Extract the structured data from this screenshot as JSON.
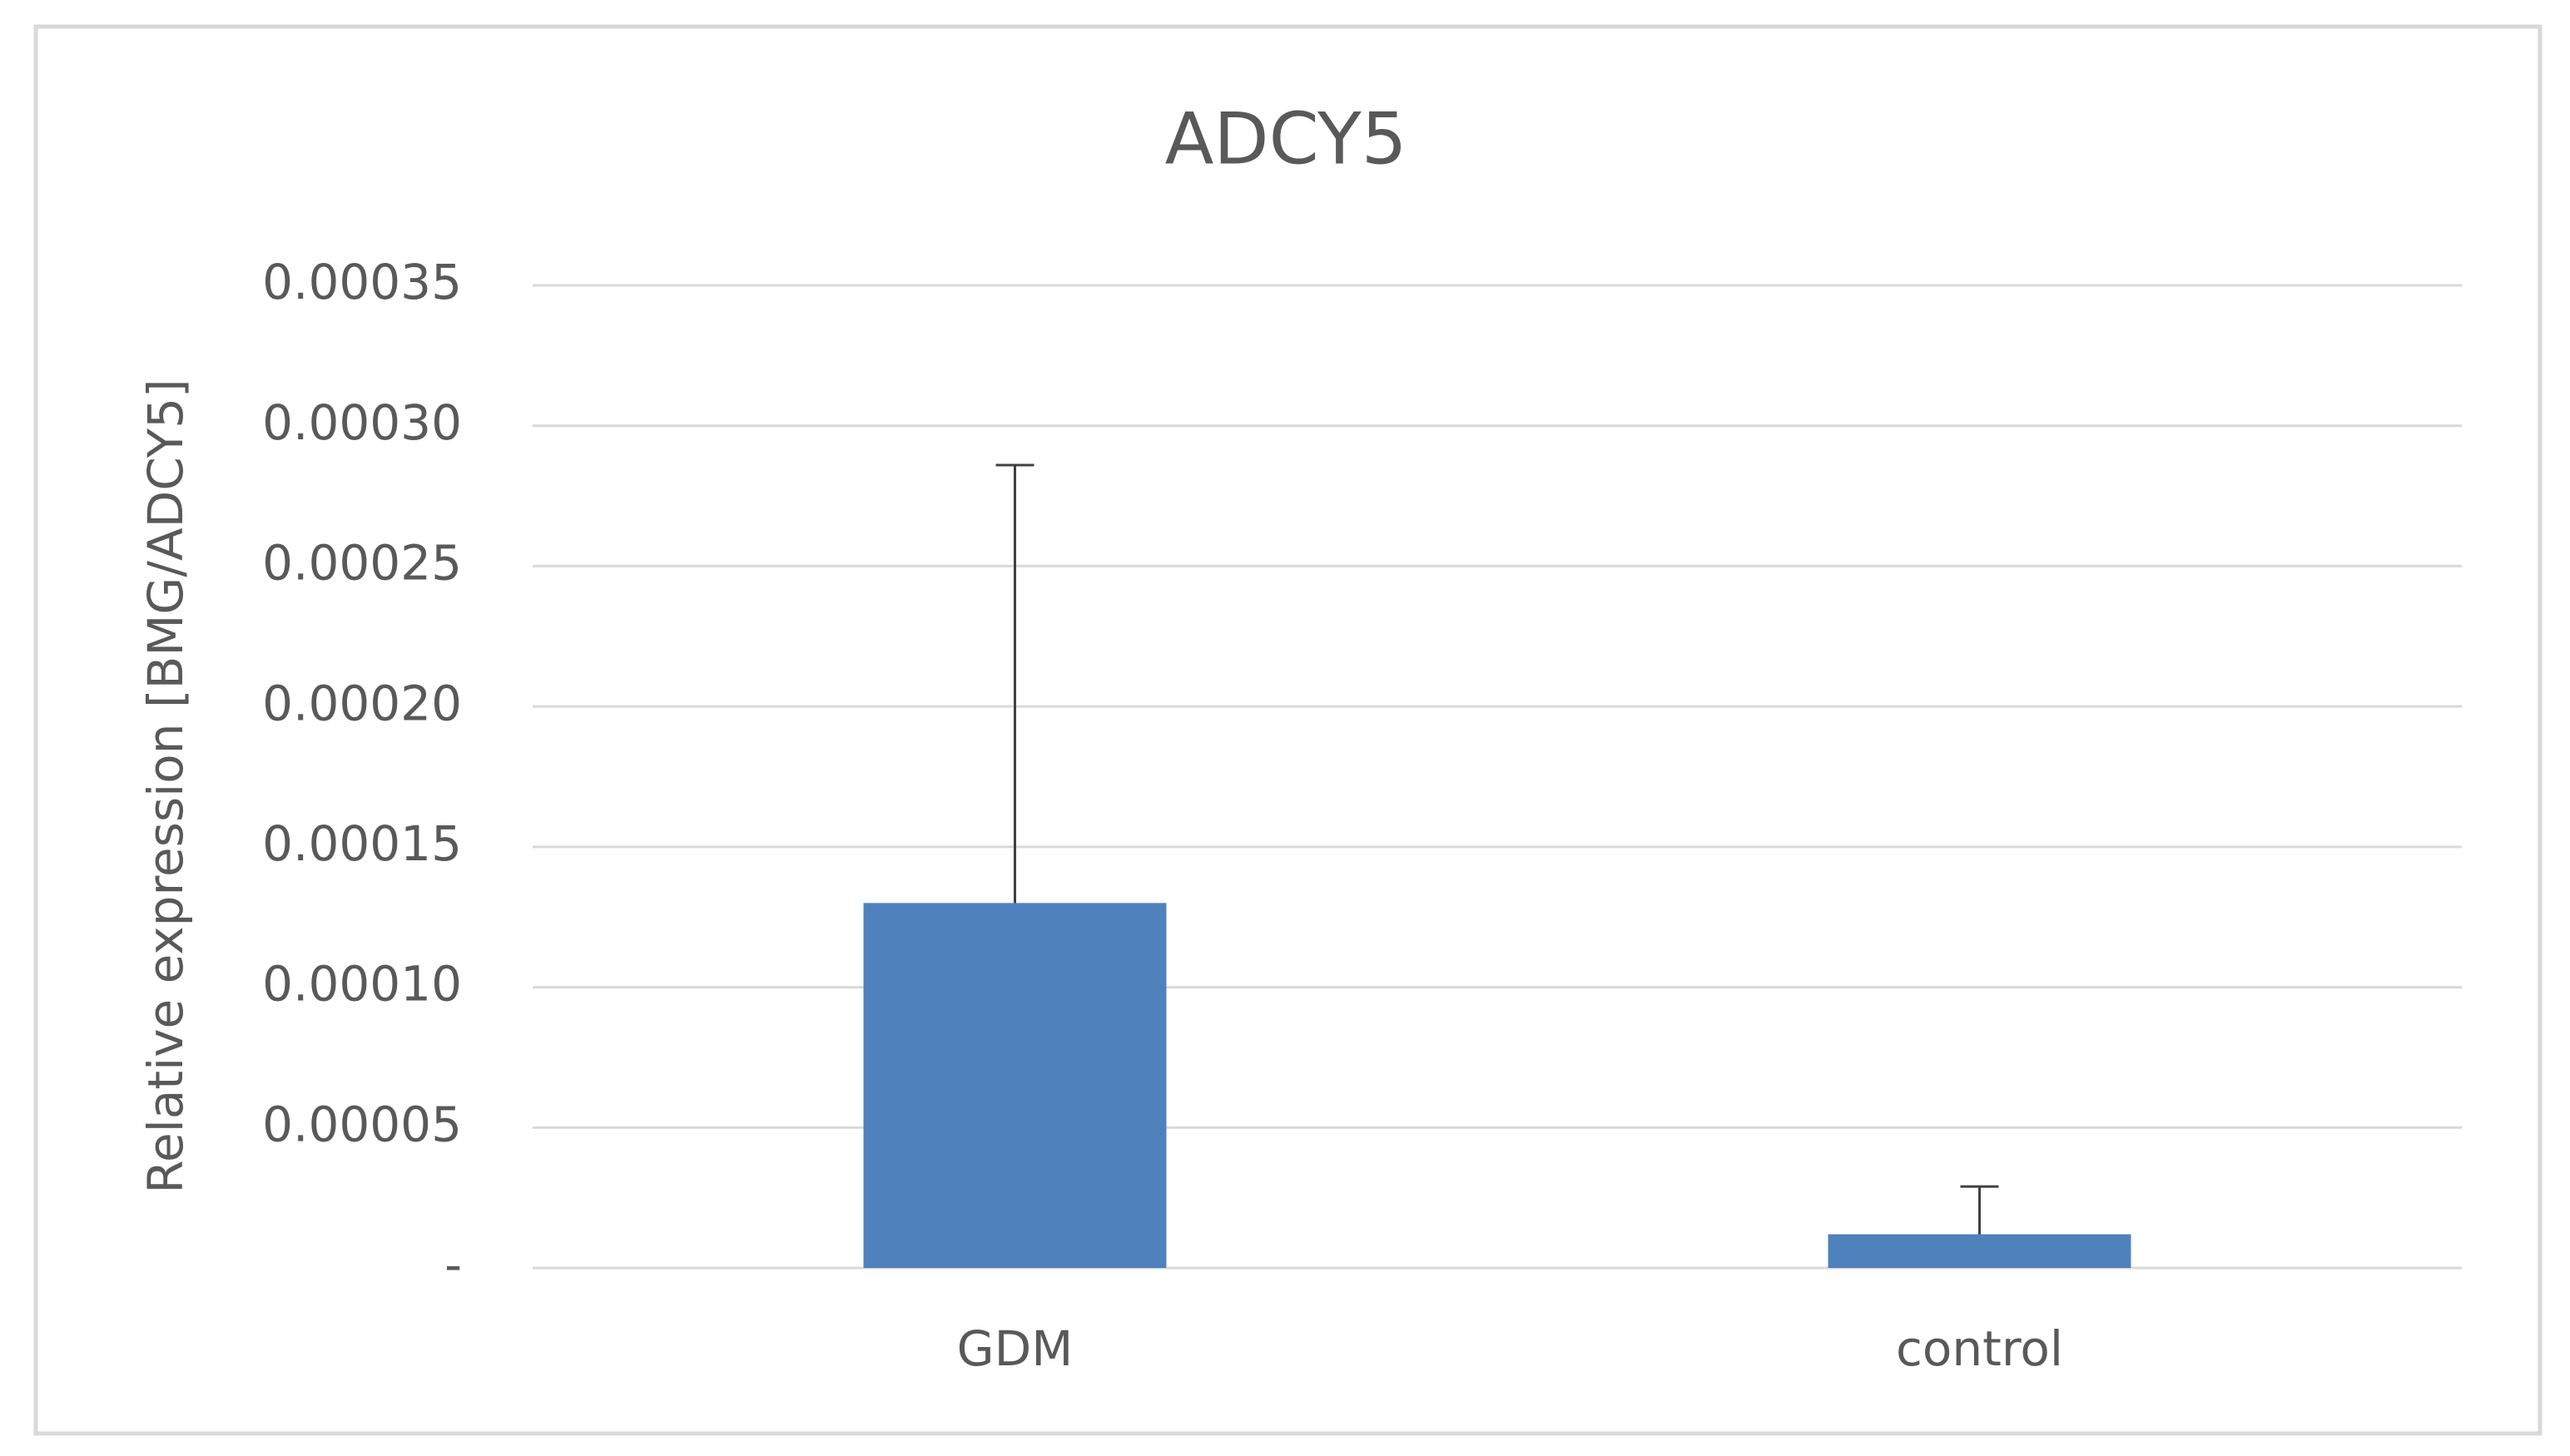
{
  "chart_data": {
    "type": "bar",
    "title": "ADCY5",
    "y_label": "Relative expression [BMG/ADCY5]",
    "categories": [
      "GDM",
      "control"
    ],
    "values": [
      0.00013,
      1.2e-05
    ],
    "errors": [
      0.000156,
      1.7e-05
    ],
    "color": "#4f81bd",
    "ylim": [
      0,
      0.00035
    ],
    "yticks": [
      {
        "value": 0,
        "label": "-"
      },
      5e-05,
      {
        "value": 0.0001,
        "label": "0.00010"
      },
      0.00015,
      {
        "value": 0.0002,
        "label": "0.00020"
      },
      0.00025,
      {
        "value": 0.0003,
        "label": "0.00030"
      },
      0.00035
    ],
    "grid": true
  }
}
